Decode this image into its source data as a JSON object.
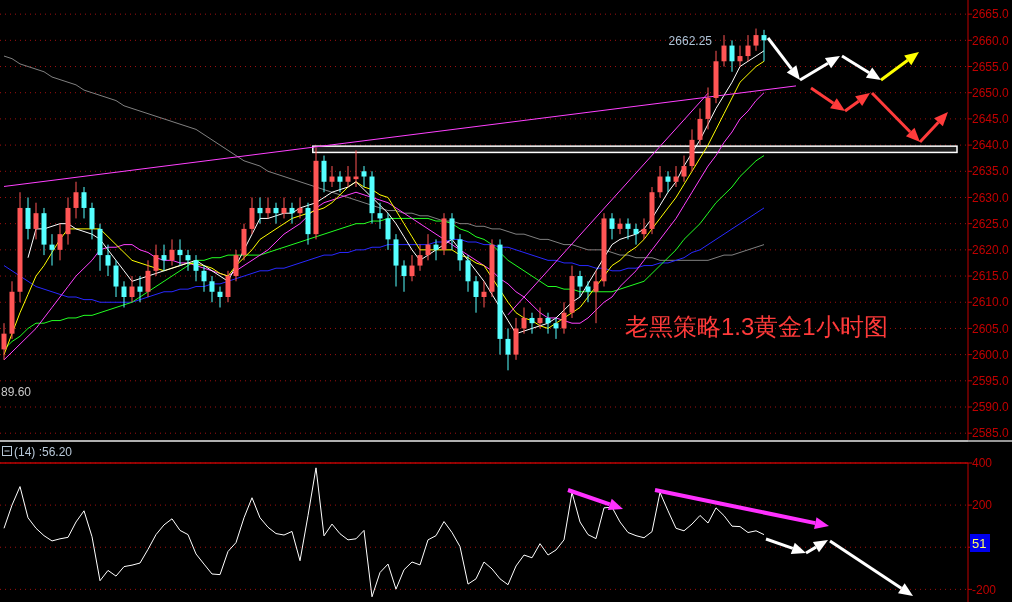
{
  "chart_data": [
    {
      "type": "candlestick",
      "title": "老黑策略1.3黄金1小时图",
      "categories": [
        null,
        null,
        null,
        null,
        null,
        null,
        null,
        null,
        null,
        null,
        null,
        null,
        null,
        null,
        null,
        null,
        null,
        null,
        null,
        null,
        null,
        null,
        null,
        null,
        null,
        null,
        null,
        null,
        null,
        null,
        null,
        null,
        null,
        null,
        null,
        null,
        null,
        null,
        null,
        null,
        null,
        null,
        null,
        null,
        null,
        null,
        null,
        null,
        null,
        null,
        null,
        null,
        null,
        null,
        null,
        null,
        null,
        null,
        null,
        null,
        null,
        null,
        null,
        null,
        null,
        null,
        null,
        null,
        null,
        null,
        null,
        null,
        null,
        null,
        null,
        null,
        null,
        null,
        null,
        null,
        null,
        null,
        null,
        null,
        null,
        null,
        null,
        null,
        null,
        null,
        null,
        null,
        null,
        null,
        null,
        null,
        null,
        null,
        null,
        null,
        null,
        null,
        null,
        null,
        null,
        null,
        null,
        null,
        null,
        null,
        null,
        null,
        null,
        null,
        null,
        null,
        null,
        null,
        null,
        null,
        null
      ],
      "ohlc": [
        [
          2601,
          2606,
          2599,
          2604
        ],
        [
          2604,
          2614,
          2603,
          2612
        ],
        [
          2612,
          2631,
          2610,
          2628
        ],
        [
          2628,
          2630,
          2622,
          2624
        ],
        [
          2624,
          2629,
          2622,
          2627
        ],
        [
          2627,
          2628,
          2619,
          2621
        ],
        [
          2621,
          2623,
          2617,
          2620
        ],
        [
          2620,
          2625,
          2618,
          2623
        ],
        [
          2623,
          2630,
          2621,
          2628
        ],
        [
          2628,
          2633,
          2626,
          2631
        ],
        [
          2631,
          2632,
          2626,
          2628
        ],
        [
          2628,
          2629,
          2622,
          2624
        ],
        [
          2624,
          2625,
          2616,
          2619
        ],
        [
          2619,
          2621,
          2615,
          2617
        ],
        [
          2617,
          2618,
          2611,
          2613
        ],
        [
          2613,
          2614,
          2609,
          2611
        ],
        [
          2611,
          2615,
          2610,
          2613
        ],
        [
          2613,
          2615,
          2610,
          2612
        ],
        [
          2612,
          2618,
          2611,
          2616
        ],
        [
          2616,
          2621,
          2615,
          2619
        ],
        [
          2619,
          2621,
          2616,
          2618
        ],
        [
          2618,
          2622,
          2617,
          2620
        ],
        [
          2620,
          2622,
          2617,
          2619
        ],
        [
          2619,
          2620,
          2616,
          2618
        ],
        [
          2618,
          2619,
          2614,
          2616
        ],
        [
          2616,
          2617,
          2612,
          2614
        ],
        [
          2614,
          2615,
          2610,
          2612
        ],
        [
          2612,
          2613,
          2609,
          2611
        ],
        [
          2611,
          2616,
          2610,
          2615
        ],
        [
          2615,
          2620,
          2614,
          2619
        ],
        [
          2619,
          2625,
          2618,
          2624
        ],
        [
          2624,
          2630,
          2623,
          2628
        ],
        [
          2628,
          2630,
          2625,
          2627
        ],
        [
          2627,
          2630,
          2626,
          2628
        ],
        [
          2628,
          2629,
          2625,
          2627
        ],
        [
          2627,
          2630,
          2626,
          2628
        ],
        [
          2628,
          2629,
          2625,
          2627
        ],
        [
          2627,
          2630,
          2626,
          2628
        ],
        [
          2628,
          2629,
          2621,
          2623
        ],
        [
          2623,
          2639.5,
          2622,
          2637
        ],
        [
          2637,
          2638,
          2631,
          2633
        ],
        [
          2633,
          2636,
          2632,
          2634
        ],
        [
          2634,
          2635,
          2631,
          2633
        ],
        [
          2633,
          2636,
          2632,
          2634
        ],
        [
          2633.5,
          2639,
          2632,
          2634
        ],
        [
          2635,
          2636,
          2632,
          2634
        ],
        [
          2634,
          2635,
          2625,
          2627
        ],
        [
          2627,
          2629,
          2624,
          2626
        ],
        [
          2626,
          2627,
          2620,
          2622
        ],
        [
          2622,
          2623,
          2613,
          2617
        ],
        [
          2617,
          2618,
          2612,
          2615
        ],
        [
          2615,
          2619,
          2614,
          2617
        ],
        [
          2617,
          2621,
          2616,
          2619
        ],
        [
          2619,
          2623,
          2618,
          2621
        ],
        [
          2621,
          2622,
          2618,
          2620
        ],
        [
          2620,
          2627,
          2619,
          2626
        ],
        [
          2626,
          2627,
          2620,
          2622
        ],
        [
          2622,
          2623,
          2616,
          2618
        ],
        [
          2618,
          2619,
          2612,
          2614
        ],
        [
          2614,
          2615,
          2608,
          2611
        ],
        [
          2611,
          2614,
          2609,
          2612
        ],
        [
          2612,
          2622,
          2611,
          2621
        ],
        [
          2621,
          2622,
          2600,
          2603
        ],
        [
          2603,
          2605,
          2597,
          2600
        ],
        [
          2600,
          2607,
          2599,
          2605
        ],
        [
          2605,
          2609,
          2604,
          2607
        ],
        [
          2607,
          2608,
          2604,
          2606
        ],
        [
          2606,
          2609,
          2605,
          2607
        ],
        [
          2607,
          2608,
          2604,
          2606
        ],
        [
          2606,
          2607,
          2603,
          2605
        ],
        [
          2605,
          2610,
          2604,
          2608
        ],
        [
          2608,
          2617,
          2607,
          2615
        ],
        [
          2615,
          2616,
          2611,
          2613
        ],
        [
          2613,
          2614,
          2610,
          2612
        ],
        [
          2612,
          2616,
          2606,
          2614
        ],
        [
          2614,
          2627,
          2613,
          2626
        ],
        [
          2626,
          2627,
          2622,
          2624
        ],
        [
          2624,
          2626,
          2623,
          2625
        ],
        [
          2625,
          2626,
          2622,
          2624
        ],
        [
          2624,
          2625,
          2621,
          2623
        ],
        [
          2623,
          2626,
          2622,
          2624
        ],
        [
          2624,
          2632,
          2623,
          2631
        ],
        [
          2631,
          2636,
          2630,
          2634
        ],
        [
          2634,
          2635,
          2631,
          2633
        ],
        [
          2633,
          2636,
          2632,
          2634
        ],
        [
          2634,
          2638,
          2633,
          2636
        ],
        [
          2636,
          2643,
          2635,
          2641
        ],
        [
          2641,
          2647,
          2640,
          2645
        ],
        [
          2645,
          2651,
          2643,
          2649
        ],
        [
          2649,
          2658,
          2648,
          2656
        ],
        [
          2656,
          2661,
          2655,
          2659
        ],
        [
          2659,
          2660,
          2654,
          2656
        ],
        [
          2656,
          2659,
          2655,
          2657
        ],
        [
          2657,
          2661,
          2656,
          2659
        ],
        [
          2659,
          2662.25,
          2658,
          2661
        ],
        [
          2661,
          2662,
          2656,
          2660
        ],
        null,
        null,
        null,
        null,
        null,
        null,
        null,
        null,
        null,
        null,
        null,
        null,
        null,
        null,
        null,
        null,
        null,
        null,
        null,
        null,
        null,
        null,
        null,
        null,
        null
      ],
      "colors": [
        "#ff5555",
        "#ff5555",
        "#ff5555",
        "#55ffff",
        "#ff5555",
        "#55ffff",
        "#55ffff",
        "#ff5555",
        "#ff5555",
        "#ff5555",
        "#55ffff",
        "#55ffff",
        "#55ffff",
        "#55ffff",
        "#55ffff",
        "#55ffff",
        "#ff5555",
        "#55ffff",
        "#ff5555",
        "#ff5555",
        "#55ffff",
        "#ff5555",
        "#55ffff",
        "#55ffff",
        "#55ffff",
        "#55ffff",
        "#55ffff",
        "#55ffff",
        "#ff5555",
        "#ff5555",
        "#ff5555",
        "#ff5555",
        "#55ffff",
        "#ff5555",
        "#55ffff",
        "#ff5555",
        "#55ffff",
        "#ff5555",
        "#55ffff",
        "#ff5555",
        "#55ffff",
        "#ff5555",
        "#55ffff",
        "#ff5555",
        "#ff5555",
        "#55ffff",
        "#55ffff",
        "#55ffff",
        "#55ffff",
        "#55ffff",
        "#55ffff",
        "#ff5555",
        "#ff5555",
        "#ff5555",
        "#55ffff",
        "#ff5555",
        "#55ffff",
        "#55ffff",
        "#55ffff",
        "#55ffff",
        "#ff5555",
        "#ff5555",
        "#55ffff",
        "#55ffff",
        "#ff5555",
        "#ff5555",
        "#55ffff",
        "#ff5555",
        "#55ffff",
        "#55ffff",
        "#ff5555",
        "#ff5555",
        "#55ffff",
        "#55ffff",
        "#ff5555",
        "#ff5555",
        "#55ffff",
        "#ff5555",
        "#55ffff",
        "#55ffff",
        "#ff5555",
        "#ff5555",
        "#ff5555",
        "#55ffff",
        "#ff5555",
        "#ff5555",
        "#ff5555",
        "#ff5555",
        "#ff5555",
        "#ff5555",
        "#ff5555",
        "#55ffff",
        "#ff5555",
        "#ff5555",
        "#ff5555",
        "#55ffff",
        null,
        null,
        null,
        null,
        null,
        null,
        null,
        null,
        null,
        null,
        null,
        null,
        null,
        null,
        null,
        null,
        null,
        null,
        null,
        null,
        null,
        null,
        null,
        null,
        null
      ],
      "series": [
        {
          "type": "line",
          "color": "#808080",
          "values": [
            2657,
            2656.5,
            2655.5,
            2655,
            2654.5,
            2654,
            2653,
            2652.5,
            2652,
            2651.5,
            2650.5,
            2650,
            2649.5,
            2649,
            2648.5,
            2647.5,
            2647,
            2646.5,
            2646,
            2645.5,
            2645,
            2644.5,
            2644,
            2643.5,
            2643,
            2642,
            2641,
            2640,
            2639,
            2638,
            2637,
            2636.5,
            2636,
            2635,
            2634.5,
            2634,
            2633.5,
            2633,
            2632.5,
            2632,
            2631.5,
            2631,
            2630.5,
            2630,
            2629.5,
            2629,
            2628.5,
            2628,
            2627.5,
            2627.5,
            2627,
            2627,
            2626.5,
            2626.5,
            2626,
            2625.5,
            2625.5,
            2625,
            2625,
            2624.5,
            2624.5,
            2624,
            2624,
            2623.5,
            2623,
            2623,
            2622.5,
            2622,
            2622,
            2621.5,
            2621,
            2621,
            2620.5,
            2620,
            2620,
            2620,
            2619.5,
            2619,
            2619,
            2618.5,
            2618.5,
            2618.5,
            2618,
            2618,
            2618,
            2618,
            2618,
            2618,
            2618,
            2618.5,
            2619,
            2619,
            2619.5,
            2620,
            2620.5,
            2621,
            null,
            null,
            null,
            null,
            null,
            null,
            null,
            null,
            null,
            null,
            null,
            null,
            null,
            null,
            null,
            null,
            null,
            null,
            null,
            null,
            null,
            null,
            null,
            null,
            null
          ]
        },
        {
          "type": "line",
          "color": "#2828ff",
          "values": [
            2617,
            2616,
            2615,
            2614,
            2613,
            2612.5,
            2612,
            2611.5,
            2611,
            2611,
            2610.5,
            2610.5,
            2610,
            2610,
            2610,
            2610,
            2610,
            2610.5,
            2611,
            2611.5,
            2612,
            2612,
            2612.5,
            2612.5,
            2613,
            2613,
            2613.5,
            2613.5,
            2614,
            2614.5,
            2615,
            2615.5,
            2616,
            2616,
            2616.5,
            2616.5,
            2617,
            2617.5,
            2618,
            2618.5,
            2619,
            2619,
            2619.5,
            2619.5,
            2620,
            2620,
            2620.5,
            2620.5,
            2621,
            2621,
            2621,
            2621,
            2621,
            2621,
            2621.5,
            2621.5,
            2622,
            2622,
            2621.5,
            2621.5,
            2621,
            2621,
            2620.5,
            2620.5,
            2620,
            2619.5,
            2619,
            2618.5,
            2618,
            2618,
            2617.5,
            2617.5,
            2617,
            2617,
            2616.5,
            2616.5,
            2616,
            2616,
            2616.5,
            2616.5,
            2617,
            2617,
            2617.5,
            2617.5,
            2618,
            2618.5,
            2619.5,
            2620,
            2621,
            2622,
            2623,
            2624,
            2625,
            2626,
            2627,
            2628,
            null,
            null,
            null,
            null,
            null,
            null,
            null,
            null,
            null,
            null,
            null,
            null,
            null,
            null,
            null,
            null,
            null,
            null,
            null,
            null,
            null,
            null,
            null,
            null,
            null
          ]
        },
        {
          "type": "line",
          "color": "#22ff22",
          "values": [
            2601,
            2602.5,
            2603.5,
            2605,
            2606,
            2606,
            2606.5,
            2606.5,
            2607,
            2607,
            2607.5,
            2607.5,
            2608,
            2608.5,
            2609,
            2609.5,
            2610,
            2611,
            2612,
            2613,
            2614,
            2615,
            2616,
            2617,
            2618,
            2618,
            2618.5,
            2618.5,
            2619,
            2619,
            2619,
            2619,
            2619,
            2619.5,
            2620,
            2620.5,
            2621,
            2621.5,
            2622,
            2622.5,
            2623,
            2623.5,
            2624,
            2624.5,
            2625,
            2625,
            2625.5,
            2625.5,
            2626,
            2626,
            2626,
            2626,
            2626,
            2626,
            2625.5,
            2625.5,
            2625,
            2624,
            2623.5,
            2622.5,
            2622,
            2621,
            2619.5,
            2618,
            2617,
            2616,
            2615,
            2614,
            2613,
            2613,
            2612.5,
            2612.5,
            2612,
            2612,
            2612,
            2612,
            2612,
            2612.5,
            2613,
            2613.5,
            2614,
            2615.5,
            2617,
            2618.5,
            2620,
            2622,
            2623.5,
            2625,
            2627,
            2629,
            2630.5,
            2632,
            2634,
            2635.5,
            2637,
            2638,
            null,
            null,
            null,
            null,
            null,
            null,
            null,
            null,
            null,
            null,
            null,
            null,
            null,
            null,
            null,
            null,
            null,
            null,
            null,
            null,
            null,
            null,
            null,
            null,
            null
          ]
        },
        {
          "type": "line",
          "color": "#ff40ff",
          "values": [
            2599,
            2600.5,
            2602,
            2603.5,
            2605,
            2607,
            2609,
            2611,
            2613,
            2615,
            2616.5,
            2618,
            2620,
            2620.5,
            2620.5,
            2621,
            2621,
            2620,
            2619.5,
            2618.5,
            2618,
            2618,
            2617.5,
            2617.5,
            2617,
            2616.5,
            2616,
            2615.5,
            2615,
            2616,
            2617,
            2618,
            2619,
            2620,
            2621.5,
            2623,
            2624,
            2625,
            2626.5,
            2628,
            2629,
            2629.5,
            2630,
            2630.5,
            2631,
            2630.5,
            2630,
            2629.5,
            2629,
            2628,
            2627,
            2626,
            2625,
            2624,
            2623,
            2622,
            2621,
            2620,
            2619,
            2618,
            2617,
            2616,
            2614.5,
            2613.5,
            2612,
            2611,
            2609.5,
            2608,
            2607,
            2607,
            2606.5,
            2606,
            2606,
            2607,
            2608.5,
            2610,
            2611,
            2613,
            2614.5,
            2616,
            2618,
            2620,
            2622,
            2624,
            2626,
            2628.5,
            2631,
            2633.5,
            2636,
            2638,
            2640.5,
            2642.5,
            2645,
            2646.5,
            2648.5,
            2650,
            null,
            null,
            null,
            null,
            null,
            null,
            null,
            null,
            null,
            null,
            null,
            null,
            null,
            null,
            null,
            null,
            null,
            null,
            null,
            null,
            null,
            null,
            null,
            null,
            null
          ]
        },
        {
          "type": "line",
          "color": "#ffff00",
          "values": [
            2600,
            2604,
            2608,
            2611.5,
            2615,
            2617,
            2619.5,
            2622,
            2624,
            2624,
            2624,
            2624,
            2624,
            2622.5,
            2621,
            2619.5,
            2618,
            2617.5,
            2617,
            2616.5,
            2616,
            2616.5,
            2617,
            2617.5,
            null,
            2617,
            2616.5,
            2615.5,
            2615,
            2617,
            2618.5,
            2620,
            2622,
            2623,
            2624,
            2625,
            2626,
            2626.5,
            2627,
            2627.5,
            2628,
            2629,
            2630.5,
            2632,
            2633,
            2632,
            2631.5,
            2630.5,
            2630,
            2627.5,
            2625,
            2622.5,
            2620,
            2620,
            2620,
            2620,
            2620,
            2619,
            2618.5,
            2617.5,
            2617,
            null,
            null,
            2610,
            2608,
            2607,
            2606.5,
            2605.5,
            2605,
            2606,
            2607,
            2608,
            2609,
            2611,
            2613,
            2615,
            2617,
            2618,
            2619.5,
            2620.5,
            2622,
            2624,
            2626,
            2628,
            2630,
            2632.5,
            2635,
            2637.5,
            2640,
            2643,
            2646,
            2649,
            2652,
            2653.5,
            2655,
            2656,
            null,
            null,
            null,
            null,
            null,
            null,
            null,
            null,
            null,
            null,
            null,
            null,
            null,
            null,
            null,
            null,
            null,
            null,
            null,
            null,
            null,
            null,
            null,
            null,
            null
          ]
        },
        {
          "type": "line",
          "color": "#ffffff",
          "values": [
            null,
            null,
            null,
            2618.5,
            2624,
            2624,
            2624.5,
            2625,
            2625,
            2624,
            2623.5,
            2623,
            2622,
            2620,
            2618,
            2616,
            2614,
            2614.5,
            2615,
            2615.5,
            2616,
            2616.5,
            2617,
            2617.5,
            2618,
            2617,
            2616,
            2615,
            2614,
            null,
            null,
            2623,
            2626,
            2626,
            2626.5,
            2627,
            2627,
            2628,
            2628.5,
            2629,
            2630,
            2631,
            2631.5,
            2632,
            2633,
            2631.5,
            2630,
            2628.5,
            2627,
            2625,
            2622.5,
            2620,
            2618,
            2619,
            2620,
            2621,
            2622,
            2620,
            2618,
            2616,
            2614,
            2611.5,
            null,
            2606.5,
            2604,
            2604.5,
            2605,
            2605.5,
            2606,
            2607,
            2608.5,
            2610,
            2611,
            2613.5,
            2616,
            null,
            2621,
            2622,
            2622.5,
            2623,
            2624,
            2626,
            2628.5,
            2631,
            2633,
            2636,
            2638.5,
            2641,
            2644,
            2647,
            2649.5,
            2652,
            2655,
            2656,
            2657,
            2658,
            null,
            null,
            null,
            null,
            null,
            null,
            null,
            null,
            null,
            null,
            null,
            null,
            null,
            null,
            null,
            null,
            null,
            null,
            null,
            null,
            null,
            null,
            null,
            null,
            null
          ]
        },
        {
          "type": "line",
          "color": "#ff40ff",
          "values": [
            2632.1,
            null,
            null,
            null,
            null,
            null,
            null,
            null,
            null,
            null,
            null,
            null,
            null,
            null,
            null,
            null,
            null,
            null,
            null,
            null,
            null,
            null,
            null,
            null,
            null,
            null,
            null,
            null,
            null,
            null,
            null,
            null,
            null,
            null,
            null,
            null,
            null,
            null,
            null,
            null,
            null,
            null,
            null,
            null,
            null,
            null,
            null,
            null,
            null,
            null,
            null,
            null,
            null,
            null,
            null,
            null,
            null,
            null,
            null,
            null,
            null,
            null,
            null,
            null,
            null,
            null,
            null,
            null,
            null,
            null,
            null,
            null,
            null,
            null,
            null,
            null,
            null,
            null,
            null,
            null,
            null,
            null,
            null,
            null,
            null,
            null,
            null,
            null,
            null,
            null,
            null,
            null,
            null,
            null,
            null,
            null,
            null,
            null,
            null,
            2651.3,
            null,
            null,
            null,
            null,
            null,
            null,
            null,
            null,
            null,
            null,
            null,
            null,
            null,
            null,
            null,
            null,
            null,
            null,
            null,
            null,
            null
          ]
        },
        {
          "type": "line",
          "color": "#ff40ff",
          "values": [
            null,
            null,
            null,
            null,
            null,
            null,
            null,
            null,
            null,
            null,
            null,
            null,
            null,
            null,
            null,
            null,
            null,
            null,
            null,
            null,
            null,
            null,
            null,
            null,
            null,
            null,
            null,
            null,
            null,
            null,
            null,
            null,
            null,
            null,
            null,
            null,
            null,
            null,
            null,
            null,
            null,
            null,
            null,
            null,
            null,
            null,
            null,
            null,
            null,
            null,
            null,
            null,
            null,
            null,
            null,
            null,
            null,
            null,
            null,
            null,
            null,
            null,
            null,
            2607.6,
            null,
            null,
            null,
            null,
            null,
            null,
            null,
            null,
            null,
            null,
            null,
            null,
            null,
            null,
            null,
            null,
            null,
            null,
            null,
            null,
            null,
            null,
            null,
            null,
            2649.9,
            null,
            null,
            null,
            null,
            null,
            null,
            null,
            null,
            null,
            null,
            null,
            null,
            null,
            null,
            null,
            null,
            null,
            null,
            null,
            null,
            null,
            null,
            null,
            null,
            null,
            null,
            null,
            null,
            null,
            null,
            null,
            null
          ]
        }
      ],
      "ylim": [
        2583.7,
        2667.7
      ],
      "yticks": [
        {
          "value": 2665,
          "label": "2665.0"
        },
        {
          "value": 2660,
          "label": "2660.0"
        },
        {
          "value": 2655,
          "label": "2655.0"
        },
        {
          "value": 2650,
          "label": "2650.0"
        },
        {
          "value": 2645,
          "label": "2645.0"
        },
        {
          "value": 2640,
          "label": "2640.0"
        },
        {
          "value": 2635,
          "label": "2635.0"
        },
        {
          "value": 2630,
          "label": "2630.0"
        },
        {
          "value": 2625,
          "label": "2625.0"
        },
        {
          "value": 2620,
          "label": "2620.0"
        },
        {
          "value": 2615,
          "label": "2615.0"
        },
        {
          "value": 2610,
          "label": "2610.0"
        },
        {
          "value": 2605,
          "label": "2605.0"
        },
        {
          "value": 2600,
          "label": "2600.0"
        },
        {
          "value": 2595,
          "label": "2595.0"
        },
        {
          "value": 2590,
          "label": "2590.0"
        },
        {
          "value": 2585,
          "label": "2585.0"
        }
      ],
      "grid": "y",
      "bands": [
        {
          "axis": "y",
          "from": 2638.6,
          "to": 2639.8,
          "color": "#ffffff"
        }
      ],
      "annotations": [
        "2662.25",
        "89.60"
      ]
    },
    {
      "type": "line",
      "title": "(14) :56.20",
      "categories": [
        null,
        null,
        null,
        null,
        null,
        null,
        null,
        null,
        null,
        null,
        null,
        null,
        null,
        null,
        null,
        null,
        null,
        null,
        null,
        null,
        null,
        null,
        null,
        null,
        null,
        null,
        null,
        null,
        null,
        null,
        null,
        null,
        null,
        null,
        null,
        null,
        null,
        null,
        null,
        null,
        null,
        null,
        null,
        null,
        null,
        null,
        null,
        null,
        null,
        null,
        null,
        null,
        null,
        null,
        null,
        null,
        null,
        null,
        null,
        null,
        null,
        null,
        null,
        null,
        null,
        null,
        null,
        null,
        null,
        null,
        null,
        null,
        null,
        null,
        null,
        null,
        null,
        null,
        null,
        null,
        null,
        null,
        null,
        null,
        null,
        null,
        null,
        null,
        null,
        null,
        null,
        null,
        null,
        null,
        null,
        null,
        null,
        null,
        null,
        null,
        null,
        null,
        null,
        null,
        null,
        null,
        null,
        null,
        null,
        null,
        null,
        null,
        null,
        null,
        null,
        null,
        null,
        null,
        null,
        null,
        null
      ],
      "series": [
        {
          "color": "#ffffff",
          "values": [
            90,
            200,
            288,
            140,
            90,
            55,
            30,
            40,
            47,
            120,
            173,
            50,
            -159,
            -110,
            -137,
            -92,
            -85,
            -75,
            -10,
            60,
            106,
            135,
            80,
            60,
            -32,
            -80,
            -127,
            -130,
            -20,
            22,
            140,
            235,
            140,
            95,
            65,
            58,
            75,
            -64,
            150,
            377,
            54,
            110,
            64,
            35,
            40,
            80,
            -235,
            -120,
            -80,
            -199,
            -107,
            -70,
            -84,
            35,
            55,
            122,
            70,
            3,
            -175,
            -150,
            -70,
            -103,
            -150,
            -178,
            -89,
            -37,
            -50,
            17,
            -37,
            -13,
            35,
            260,
            120,
            60,
            41,
            187,
            190,
            120,
            70,
            55,
            45,
            74,
            260,
            173,
            90,
            78,
            110,
            151,
            115,
            187,
            150,
            100,
            98,
            70,
            78,
            60,
            null,
            null,
            null,
            null,
            null,
            null,
            null,
            null,
            null,
            null,
            null,
            null,
            null,
            null,
            null,
            null,
            null,
            null,
            null,
            null,
            null,
            null,
            null,
            null,
            null
          ]
        }
      ],
      "ylim": [
        -260,
        400
      ],
      "yticks": [
        400,
        200,
        {
          "value": 0,
          "label": null
        },
        -200
      ],
      "grid": "y",
      "annotations": [
        "51"
      ]
    }
  ]
}
